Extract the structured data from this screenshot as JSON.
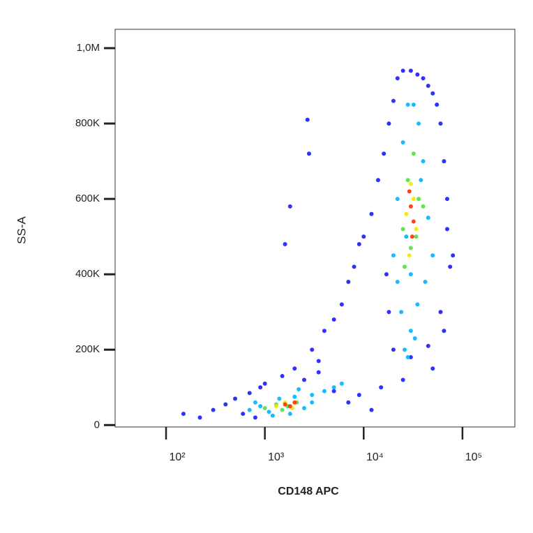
{
  "chart_data": {
    "type": "scatter",
    "xlabel": "CD148 APC",
    "ylabel": "SS-A",
    "xscale": "log",
    "xlim": [
      30.5,
      339000
    ],
    "xticks": [
      {
        "value": 100,
        "label": "10²"
      },
      {
        "value": 1000,
        "label": "10³"
      },
      {
        "value": 10000,
        "label": "10⁴"
      },
      {
        "value": 100000,
        "label": "10⁵"
      }
    ],
    "ylim": [
      -5000,
      1050000
    ],
    "yticks": [
      0,
      {
        "value": 200000,
        "label": "200K"
      },
      {
        "value": 400000,
        "label": "400K"
      },
      {
        "value": 600000,
        "label": "600K"
      },
      {
        "value": 800000,
        "label": "800K"
      },
      {
        "value": 1000000,
        "label": "1,0M"
      }
    ],
    "series": [
      {
        "color": "#1a1aff",
        "x": [
          150,
          220,
          300,
          400,
          500,
          600,
          700,
          800,
          900,
          1000,
          1500,
          2000,
          2500,
          3000,
          3500,
          4000,
          5000,
          6000,
          7000,
          8000,
          9000,
          10000,
          12000,
          14000,
          16000,
          18000,
          20000,
          22000,
          25000,
          30000,
          35000,
          40000,
          45000,
          50000,
          55000,
          60000,
          65000,
          70000,
          80000,
          18000,
          20000,
          60000,
          65000,
          2700,
          1800,
          1600,
          2800,
          3500,
          5000,
          7000,
          9000,
          12000,
          15000,
          70000,
          75000,
          17000,
          50000,
          30000,
          25000,
          45000
        ],
        "values": [
          30000,
          20000,
          40000,
          55000,
          70000,
          30000,
          85000,
          20000,
          100000,
          110000,
          130000,
          150000,
          120000,
          200000,
          170000,
          250000,
          280000,
          320000,
          380000,
          420000,
          480000,
          500000,
          560000,
          650000,
          720000,
          800000,
          860000,
          920000,
          940000,
          940000,
          930000,
          920000,
          900000,
          880000,
          850000,
          800000,
          700000,
          600000,
          450000,
          300000,
          200000,
          300000,
          250000,
          810000,
          580000,
          480000,
          720000,
          140000,
          90000,
          60000,
          80000,
          40000,
          100000,
          520000,
          420000,
          400000,
          150000,
          180000,
          120000,
          210000
        ]
      },
      {
        "color": "#00b4ff",
        "x": [
          700,
          900,
          1100,
          1400,
          2000,
          2500,
          3000,
          4000,
          5000,
          6000,
          800,
          1200,
          1800,
          2200,
          3000,
          20000,
          22000,
          25000,
          28000,
          32000,
          36000,
          40000,
          45000,
          50000,
          24000,
          26000,
          30000,
          35000,
          42000,
          30000,
          28000,
          33000,
          22000,
          27000,
          38000
        ],
        "values": [
          40000,
          50000,
          35000,
          70000,
          75000,
          45000,
          80000,
          90000,
          100000,
          110000,
          60000,
          25000,
          30000,
          95000,
          60000,
          450000,
          600000,
          750000,
          850000,
          850000,
          800000,
          700000,
          550000,
          450000,
          300000,
          200000,
          250000,
          320000,
          380000,
          400000,
          180000,
          230000,
          380000,
          500000,
          650000
        ]
      },
      {
        "color": "#50e040",
        "x": [
          1000,
          1300,
          1700,
          2100,
          1500,
          25000,
          28000,
          32000,
          36000,
          30000,
          26000,
          34000,
          40000
        ],
        "values": [
          45000,
          55000,
          50000,
          60000,
          40000,
          520000,
          650000,
          720000,
          600000,
          470000,
          420000,
          500000,
          580000
        ]
      },
      {
        "color": "#f5e600",
        "x": [
          1300,
          1600,
          1900,
          27000,
          30000,
          34000,
          29000,
          32000
        ],
        "values": [
          50000,
          60000,
          45000,
          560000,
          640000,
          520000,
          450000,
          600000
        ]
      },
      {
        "color": "#ff3000",
        "x": [
          1600,
          1800,
          2000,
          30000,
          32000,
          29000,
          31000
        ],
        "values": [
          55000,
          50000,
          60000,
          580000,
          540000,
          620000,
          500000
        ]
      }
    ]
  }
}
